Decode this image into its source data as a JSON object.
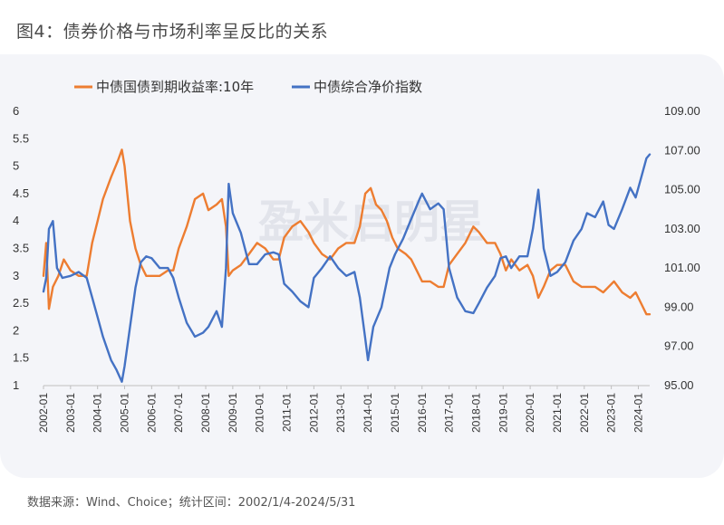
{
  "figure_title": "图4：债券价格与市场利率呈反比的关系",
  "source": "数据来源：Wind、Choice；统计区间：2002/1/4-2024/5/31",
  "watermark": "盈米启明星",
  "colors": {
    "yield": "#ED7D31",
    "index": "#4472C4",
    "panel": "#f4f5f9"
  },
  "chart_data": {
    "type": "line",
    "x_labels": [
      "2002-01",
      "2003-01",
      "2004-01",
      "2005-01",
      "2006-01",
      "2007-01",
      "2008-01",
      "2009-01",
      "2010-01",
      "2011-01",
      "2012-01",
      "2013-01",
      "2014-01",
      "2015-01",
      "2016-01",
      "2017-01",
      "2018-01",
      "2019-01",
      "2020-01",
      "2021-01",
      "2022-01",
      "2023-01",
      "2024-01"
    ],
    "x_range": [
      2002.0,
      2024.42
    ],
    "left_axis": {
      "ticks": [
        "6",
        "5.5",
        "5",
        "4.5",
        "4",
        "3.5",
        "3",
        "2.5",
        "2",
        "1.5",
        "1"
      ],
      "range": [
        1,
        6
      ]
    },
    "right_axis": {
      "ticks": [
        "109.00",
        "107.00",
        "105.00",
        "103.00",
        "101.00",
        "99.00",
        "97.00",
        "95.00"
      ],
      "range": [
        95,
        109
      ]
    },
    "series": [
      {
        "name": "中债国债到期收益率:10年",
        "axis": "left",
        "color": "#ED7D31",
        "points": [
          [
            2002.0,
            3.0
          ],
          [
            2002.1,
            3.6
          ],
          [
            2002.2,
            2.4
          ],
          [
            2002.35,
            2.8
          ],
          [
            2002.55,
            3.0
          ],
          [
            2002.75,
            3.3
          ],
          [
            2003.0,
            3.1
          ],
          [
            2003.3,
            3.0
          ],
          [
            2003.6,
            3.0
          ],
          [
            2003.8,
            3.6
          ],
          [
            2004.0,
            4.0
          ],
          [
            2004.2,
            4.4
          ],
          [
            2004.5,
            4.8
          ],
          [
            2004.75,
            5.1
          ],
          [
            2004.9,
            5.3
          ],
          [
            2005.0,
            5.0
          ],
          [
            2005.2,
            4.0
          ],
          [
            2005.4,
            3.5
          ],
          [
            2005.6,
            3.2
          ],
          [
            2005.8,
            3.0
          ],
          [
            2006.0,
            3.0
          ],
          [
            2006.3,
            3.0
          ],
          [
            2006.6,
            3.1
          ],
          [
            2006.8,
            3.1
          ],
          [
            2007.0,
            3.5
          ],
          [
            2007.3,
            3.9
          ],
          [
            2007.6,
            4.4
          ],
          [
            2007.9,
            4.5
          ],
          [
            2008.1,
            4.2
          ],
          [
            2008.4,
            4.3
          ],
          [
            2008.6,
            4.4
          ],
          [
            2008.75,
            3.9
          ],
          [
            2008.85,
            3.0
          ],
          [
            2009.0,
            3.1
          ],
          [
            2009.3,
            3.2
          ],
          [
            2009.6,
            3.4
          ],
          [
            2009.9,
            3.6
          ],
          [
            2010.2,
            3.5
          ],
          [
            2010.5,
            3.3
          ],
          [
            2010.7,
            3.3
          ],
          [
            2010.9,
            3.7
          ],
          [
            2011.2,
            3.9
          ],
          [
            2011.5,
            4.0
          ],
          [
            2011.8,
            3.8
          ],
          [
            2012.0,
            3.6
          ],
          [
            2012.3,
            3.4
          ],
          [
            2012.6,
            3.3
          ],
          [
            2012.9,
            3.5
          ],
          [
            2013.2,
            3.6
          ],
          [
            2013.5,
            3.6
          ],
          [
            2013.7,
            3.9
          ],
          [
            2013.9,
            4.5
          ],
          [
            2014.1,
            4.6
          ],
          [
            2014.3,
            4.3
          ],
          [
            2014.5,
            4.2
          ],
          [
            2014.7,
            4.0
          ],
          [
            2014.9,
            3.7
          ],
          [
            2015.1,
            3.5
          ],
          [
            2015.4,
            3.4
          ],
          [
            2015.6,
            3.3
          ],
          [
            2015.8,
            3.1
          ],
          [
            2016.0,
            2.9
          ],
          [
            2016.3,
            2.9
          ],
          [
            2016.6,
            2.8
          ],
          [
            2016.8,
            2.8
          ],
          [
            2017.0,
            3.2
          ],
          [
            2017.3,
            3.4
          ],
          [
            2017.6,
            3.6
          ],
          [
            2017.9,
            3.9
          ],
          [
            2018.1,
            3.8
          ],
          [
            2018.4,
            3.6
          ],
          [
            2018.7,
            3.6
          ],
          [
            2018.9,
            3.4
          ],
          [
            2019.1,
            3.1
          ],
          [
            2019.3,
            3.3
          ],
          [
            2019.6,
            3.1
          ],
          [
            2019.9,
            3.2
          ],
          [
            2020.1,
            3.0
          ],
          [
            2020.3,
            2.6
          ],
          [
            2020.5,
            2.8
          ],
          [
            2020.75,
            3.1
          ],
          [
            2021.0,
            3.2
          ],
          [
            2021.3,
            3.2
          ],
          [
            2021.6,
            2.9
          ],
          [
            2021.9,
            2.8
          ],
          [
            2022.1,
            2.8
          ],
          [
            2022.4,
            2.8
          ],
          [
            2022.7,
            2.7
          ],
          [
            2022.9,
            2.8
          ],
          [
            2023.1,
            2.9
          ],
          [
            2023.4,
            2.7
          ],
          [
            2023.7,
            2.6
          ],
          [
            2023.9,
            2.7
          ],
          [
            2024.1,
            2.5
          ],
          [
            2024.3,
            2.3
          ],
          [
            2024.42,
            2.3
          ]
        ]
      },
      {
        "name": "中债综合净价指数",
        "axis": "right",
        "color": "#4472C4",
        "points": [
          [
            2002.0,
            99.8
          ],
          [
            2002.1,
            100.5
          ],
          [
            2002.2,
            103.0
          ],
          [
            2002.35,
            103.4
          ],
          [
            2002.5,
            101.0
          ],
          [
            2002.7,
            100.5
          ],
          [
            2003.0,
            100.6
          ],
          [
            2003.3,
            100.8
          ],
          [
            2003.6,
            100.5
          ],
          [
            2003.8,
            99.5
          ],
          [
            2004.0,
            98.5
          ],
          [
            2004.2,
            97.5
          ],
          [
            2004.5,
            96.3
          ],
          [
            2004.7,
            95.8
          ],
          [
            2004.9,
            95.2
          ],
          [
            2005.0,
            96.0
          ],
          [
            2005.2,
            98.0
          ],
          [
            2005.4,
            100.0
          ],
          [
            2005.6,
            101.3
          ],
          [
            2005.8,
            101.6
          ],
          [
            2006.0,
            101.5
          ],
          [
            2006.3,
            101.0
          ],
          [
            2006.6,
            101.0
          ],
          [
            2006.8,
            100.5
          ],
          [
            2007.0,
            99.5
          ],
          [
            2007.3,
            98.2
          ],
          [
            2007.6,
            97.5
          ],
          [
            2007.9,
            97.7
          ],
          [
            2008.1,
            98.0
          ],
          [
            2008.4,
            98.8
          ],
          [
            2008.6,
            98.0
          ],
          [
            2008.75,
            101.0
          ],
          [
            2008.85,
            105.3
          ],
          [
            2009.0,
            103.8
          ],
          [
            2009.3,
            102.8
          ],
          [
            2009.6,
            101.2
          ],
          [
            2009.9,
            101.2
          ],
          [
            2010.2,
            101.7
          ],
          [
            2010.5,
            101.8
          ],
          [
            2010.7,
            101.7
          ],
          [
            2010.9,
            100.2
          ],
          [
            2011.2,
            99.8
          ],
          [
            2011.5,
            99.3
          ],
          [
            2011.8,
            99.0
          ],
          [
            2012.0,
            100.5
          ],
          [
            2012.3,
            101.0
          ],
          [
            2012.6,
            101.6
          ],
          [
            2012.9,
            101.0
          ],
          [
            2013.2,
            100.6
          ],
          [
            2013.5,
            100.8
          ],
          [
            2013.7,
            99.5
          ],
          [
            2013.9,
            97.4
          ],
          [
            2014.0,
            96.3
          ],
          [
            2014.2,
            98.0
          ],
          [
            2014.5,
            99.0
          ],
          [
            2014.8,
            101.0
          ],
          [
            2015.0,
            101.7
          ],
          [
            2015.3,
            102.5
          ],
          [
            2015.6,
            103.5
          ],
          [
            2015.9,
            104.5
          ],
          [
            2016.0,
            104.8
          ],
          [
            2016.3,
            104.0
          ],
          [
            2016.6,
            104.3
          ],
          [
            2016.8,
            104.0
          ],
          [
            2017.0,
            101.0
          ],
          [
            2017.3,
            99.5
          ],
          [
            2017.6,
            98.8
          ],
          [
            2017.9,
            98.7
          ],
          [
            2018.1,
            99.2
          ],
          [
            2018.4,
            100.0
          ],
          [
            2018.7,
            100.6
          ],
          [
            2018.9,
            101.5
          ],
          [
            2019.1,
            101.6
          ],
          [
            2019.3,
            101.0
          ],
          [
            2019.6,
            101.6
          ],
          [
            2019.9,
            101.6
          ],
          [
            2020.1,
            103.0
          ],
          [
            2020.3,
            105.0
          ],
          [
            2020.5,
            102.0
          ],
          [
            2020.75,
            100.6
          ],
          [
            2021.0,
            100.8
          ],
          [
            2021.3,
            101.3
          ],
          [
            2021.6,
            102.4
          ],
          [
            2021.9,
            103.0
          ],
          [
            2022.1,
            103.8
          ],
          [
            2022.4,
            103.6
          ],
          [
            2022.7,
            104.4
          ],
          [
            2022.9,
            103.2
          ],
          [
            2023.1,
            103.0
          ],
          [
            2023.4,
            104.0
          ],
          [
            2023.7,
            105.1
          ],
          [
            2023.9,
            104.6
          ],
          [
            2024.1,
            105.6
          ],
          [
            2024.3,
            106.6
          ],
          [
            2024.42,
            106.8
          ]
        ]
      }
    ]
  }
}
